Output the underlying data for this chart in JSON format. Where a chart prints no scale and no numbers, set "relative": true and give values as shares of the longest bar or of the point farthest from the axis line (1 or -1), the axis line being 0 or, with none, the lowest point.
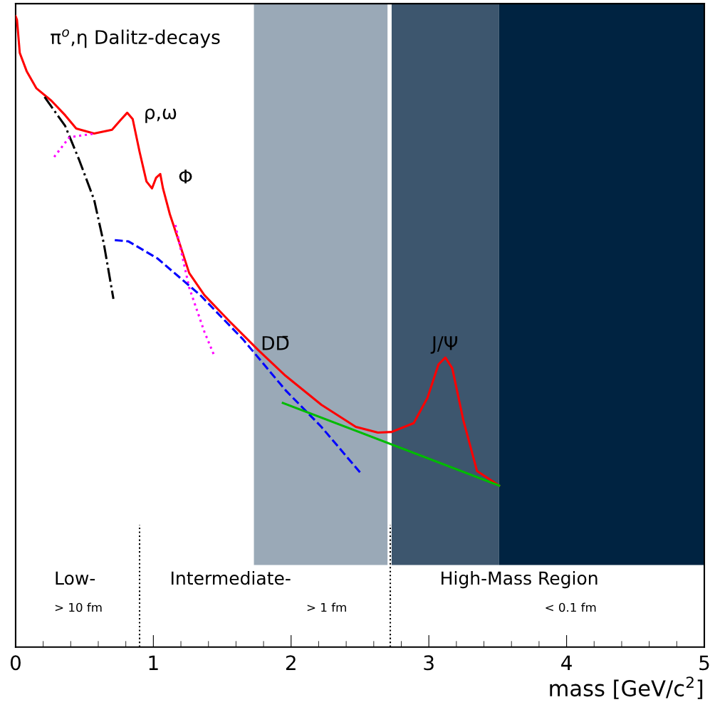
{
  "chart_data": {
    "type": "line",
    "relative": true,
    "xlabel": "mass [GeV/c$^{2}$]",
    "xlim": [
      0,
      5
    ],
    "xticks": [
      0,
      1,
      2,
      3,
      4,
      5
    ],
    "legend": false,
    "grid": false,
    "marker": "none",
    "series": [
      {
        "color": "#ff0000",
        "line_style": "solid",
        "x": [
          0.0,
          0.01,
          0.03,
          0.08,
          0.15,
          0.26,
          0.36,
          0.44,
          0.57,
          0.7,
          0.76,
          0.81,
          0.85,
          0.9,
          0.95,
          0.99,
          1.02,
          1.05,
          1.07,
          1.12,
          1.19,
          1.26,
          1.37,
          1.55,
          1.76,
          1.96,
          2.22,
          2.47,
          2.63,
          2.73,
          2.89,
          2.99,
          3.07,
          3.12,
          3.17,
          3.25,
          3.35,
          3.51
        ],
        "values": [
          1.0,
          0.994,
          0.942,
          0.913,
          0.886,
          0.866,
          0.843,
          0.822,
          0.814,
          0.82,
          0.835,
          0.847,
          0.837,
          0.785,
          0.738,
          0.727,
          0.744,
          0.75,
          0.727,
          0.686,
          0.64,
          0.593,
          0.558,
          0.517,
          0.471,
          0.43,
          0.384,
          0.349,
          0.34,
          0.341,
          0.355,
          0.395,
          0.448,
          0.459,
          0.442,
          0.36,
          0.279,
          0.256
        ]
      },
      {
        "color": "#000000",
        "line_style": "dashdot",
        "x": [
          0.21,
          0.36,
          0.46,
          0.57,
          0.64,
          0.71
        ],
        "values": [
          0.872,
          0.826,
          0.773,
          0.709,
          0.64,
          0.552
        ]
      },
      {
        "color": "#ff00ff",
        "line_style": "dotted",
        "x": [
          0.28,
          0.39,
          0.57,
          0.9,
          1.16,
          1.26,
          1.37,
          1.44
        ],
        "values": [
          0.777,
          0.808,
          0.814,
          null,
          0.669,
          0.57,
          0.5,
          0.463
        ]
      },
      {
        "color": "#0000ff",
        "line_style": "dashed",
        "x": [
          0.72,
          0.82,
          1.03,
          1.34,
          1.65,
          1.96,
          2.22,
          2.5
        ],
        "values": [
          0.645,
          0.643,
          0.616,
          0.558,
          0.488,
          0.407,
          0.349,
          0.277
        ]
      },
      {
        "color": "#00bb00",
        "line_style": "solid",
        "x": [
          1.94,
          3.51
        ],
        "values": [
          0.387,
          0.256
        ]
      }
    ],
    "bands": [
      {
        "axis": "x",
        "from": 1.73,
        "to": 2.7,
        "color": "#9aa9b7"
      },
      {
        "axis": "x",
        "from": 2.73,
        "to": 3.51,
        "color": "#3d566e"
      },
      {
        "axis": "x",
        "from": 3.51,
        "to": 5.0,
        "color": "#002341"
      }
    ],
    "ref_lines": [
      {
        "axis": "x",
        "value": 0.9,
        "line_style": "dotted",
        "color": "#000000"
      },
      {
        "axis": "x",
        "value": 2.72,
        "line_style": "dotted",
        "color": "#000000"
      }
    ],
    "annotations": [
      "π$^{o}$,η Dalitz-decays",
      "ρ,ω",
      "Φ",
      "DD̄",
      "J/Ψ",
      "Low-",
      "> 10 fm",
      "Intermediate-",
      "> 1 fm",
      "High-Mass Region",
      "< 0.1 fm"
    ]
  }
}
